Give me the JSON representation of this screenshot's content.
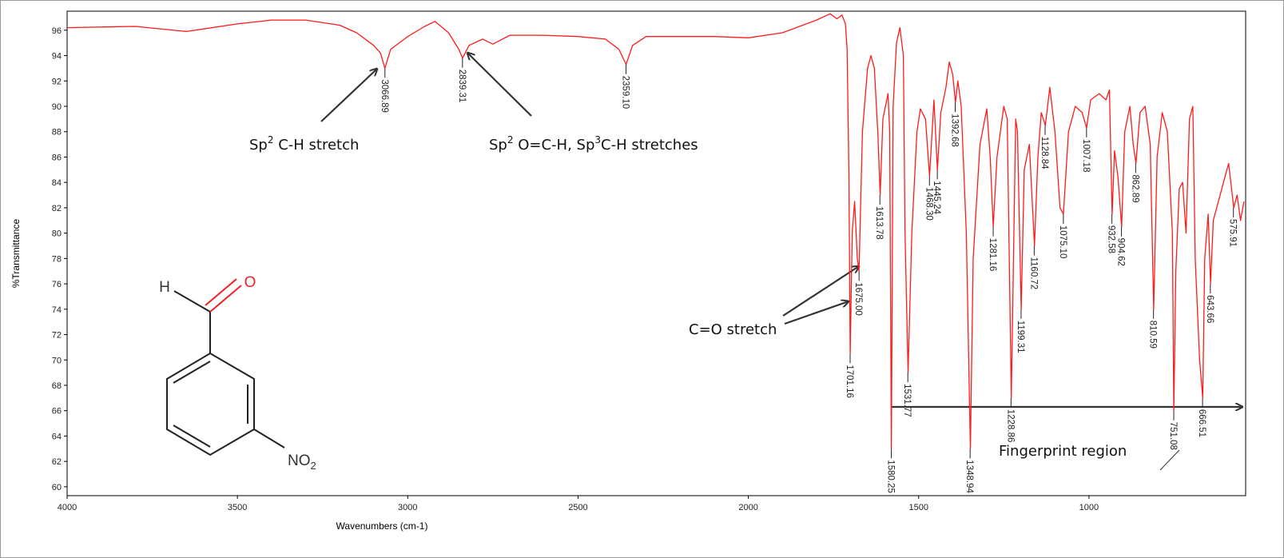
{
  "chart_data": {
    "type": "line",
    "xlabel": "Wavenumbers (cm-1)",
    "ylabel": "%Transmittance",
    "color": "#ff1a1a",
    "xlim": [
      4000,
      540
    ],
    "ylim": [
      59.3,
      97.5
    ],
    "xticks": [
      4000,
      3500,
      3000,
      2500,
      2000,
      1500,
      1000
    ],
    "yticks": [
      60,
      62,
      64,
      66,
      68,
      70,
      72,
      74,
      76,
      78,
      80,
      82,
      84,
      86,
      88,
      90,
      92,
      94,
      96
    ],
    "x": [
      4000,
      3800,
      3650,
      3500,
      3400,
      3300,
      3200,
      3150,
      3100,
      3080,
      3067,
      3050,
      3000,
      2950,
      2920,
      2880,
      2850,
      2839,
      2820,
      2780,
      2750,
      2700,
      2600,
      2500,
      2420,
      2380,
      2359,
      2340,
      2300,
      2200,
      2100,
      2000,
      1900,
      1800,
      1760,
      1740,
      1725,
      1715,
      1710,
      1705,
      1701,
      1695,
      1688,
      1680,
      1675,
      1665,
      1650,
      1640,
      1630,
      1620,
      1613,
      1605,
      1590,
      1585,
      1580,
      1575,
      1565,
      1555,
      1545,
      1540,
      1531,
      1520,
      1505,
      1495,
      1480,
      1468,
      1455,
      1445,
      1435,
      1420,
      1410,
      1400,
      1392,
      1385,
      1375,
      1360,
      1348,
      1340,
      1320,
      1300,
      1290,
      1281,
      1270,
      1250,
      1240,
      1228,
      1215,
      1210,
      1199,
      1190,
      1175,
      1160,
      1150,
      1140,
      1128,
      1115,
      1100,
      1085,
      1075,
      1060,
      1040,
      1020,
      1007,
      995,
      970,
      950,
      940,
      932,
      925,
      915,
      904,
      895,
      880,
      870,
      862,
      850,
      835,
      820,
      810,
      800,
      785,
      770,
      755,
      751,
      745,
      735,
      725,
      715,
      705,
      695,
      688,
      680,
      675,
      666,
      660,
      650,
      643,
      635,
      620,
      600,
      590,
      575,
      565,
      555,
      545
    ],
    "values": [
      96.2,
      96.3,
      95.9,
      96.5,
      96.8,
      96.8,
      96.4,
      95.8,
      94.8,
      94.2,
      93.0,
      94.5,
      95.5,
      96.3,
      96.7,
      95.8,
      94.5,
      93.8,
      94.8,
      95.3,
      94.9,
      95.6,
      95.6,
      95.5,
      95.3,
      94.5,
      93.3,
      94.8,
      95.5,
      95.5,
      95.5,
      95.4,
      95.8,
      96.8,
      97.3,
      96.9,
      97.2,
      96.5,
      94.5,
      85,
      70.5,
      80,
      82.5,
      78,
      77,
      88,
      93,
      94,
      93,
      88,
      83,
      89,
      91,
      88,
      63,
      90,
      95,
      96.2,
      94,
      80,
      69,
      80,
      88,
      89.8,
      89,
      84.5,
      90.5,
      85,
      89.5,
      91.5,
      93.5,
      92.5,
      90.3,
      92,
      90,
      80,
      63,
      78,
      87,
      89.8,
      86,
      80.5,
      86,
      90,
      89,
      67,
      89,
      88,
      74,
      85,
      87,
      79,
      86,
      89.5,
      88.5,
      91.5,
      88,
      82,
      81.5,
      88,
      90,
      89.5,
      88.3,
      90.5,
      91,
      90.5,
      91.3,
      81.5,
      86.5,
      84.5,
      80.5,
      88,
      90,
      87,
      85.5,
      89.5,
      90,
      87,
      74,
      86,
      89.5,
      88,
      80,
      66,
      77,
      83.5,
      84,
      80,
      89,
      90,
      78,
      73,
      70,
      67,
      78,
      81.5,
      76,
      81,
      82.5,
      84.5,
      85.5,
      82,
      83,
      81,
      82.5
    ],
    "peaks": [
      {
        "x": 3066.89,
        "y": 93.0,
        "label": "3066.89"
      },
      {
        "x": 2839.31,
        "y": 93.8,
        "label": "2839.31"
      },
      {
        "x": 2359.1,
        "y": 93.3,
        "label": "2359.10"
      },
      {
        "x": 1701.16,
        "y": 70.5,
        "label": "1701.16"
      },
      {
        "x": 1675.0,
        "y": 77,
        "label": "1675.00"
      },
      {
        "x": 1613.78,
        "y": 83,
        "label": "1613.78"
      },
      {
        "x": 1580.25,
        "y": 63,
        "label": "1580.25"
      },
      {
        "x": 1531.77,
        "y": 69,
        "label": "1531.77"
      },
      {
        "x": 1468.3,
        "y": 84.5,
        "label": "1468.30"
      },
      {
        "x": 1445.24,
        "y": 85,
        "label": "1445.24"
      },
      {
        "x": 1392.68,
        "y": 90.3,
        "label": "1392.68"
      },
      {
        "x": 1348.94,
        "y": 63,
        "label": "1348.94"
      },
      {
        "x": 1281.16,
        "y": 80.5,
        "label": "1281.16"
      },
      {
        "x": 1228.86,
        "y": 67,
        "label": "1228.86"
      },
      {
        "x": 1199.31,
        "y": 74,
        "label": "1199.31"
      },
      {
        "x": 1160.72,
        "y": 79,
        "label": "1160.72"
      },
      {
        "x": 1128.84,
        "y": 88.5,
        "label": "1128.84"
      },
      {
        "x": 1075.1,
        "y": 81.5,
        "label": "1075.10"
      },
      {
        "x": 1007.18,
        "y": 88.3,
        "label": "1007.18"
      },
      {
        "x": 932.58,
        "y": 81.5,
        "label": "932.58"
      },
      {
        "x": 904.62,
        "y": 80.5,
        "label": "904.62"
      },
      {
        "x": 862.89,
        "y": 85.5,
        "label": "862.89"
      },
      {
        "x": 810.59,
        "y": 74,
        "label": "810.59"
      },
      {
        "x": 751.08,
        "y": 66,
        "label": "751.08"
      },
      {
        "x": 666.51,
        "y": 67,
        "label": "666.51"
      },
      {
        "x": 643.66,
        "y": 76,
        "label": "643.66"
      },
      {
        "x": 575.91,
        "y": 82,
        "label": "575.91"
      }
    ],
    "annotations": [
      {
        "text": [
          "Sp",
          "2",
          " C-H stretch"
        ]
      },
      {
        "text": [
          "Sp",
          "2",
          " O=C-H, Sp",
          "3",
          "C-H stretches"
        ]
      },
      {
        "text": [
          "C=O stretch"
        ]
      },
      {
        "text": [
          "Fingerprint region"
        ]
      }
    ],
    "molecule_labels": [
      "H",
      "O",
      "NO",
      "2"
    ]
  }
}
